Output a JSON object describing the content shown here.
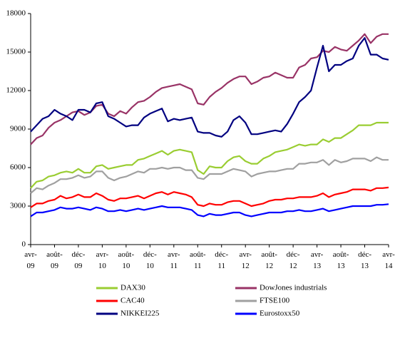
{
  "chart_data": {
    "type": "line",
    "categories": [
      "avr-09",
      null,
      null,
      null,
      "août-09",
      null,
      null,
      null,
      "déc-09",
      null,
      null,
      null,
      "avr-10",
      null,
      null,
      null,
      "août-10",
      null,
      null,
      null,
      "déc-10",
      null,
      null,
      null,
      "avr-11",
      null,
      null,
      null,
      "août-11",
      null,
      null,
      null,
      "déc-11",
      null,
      null,
      null,
      "avr-12",
      null,
      null,
      null,
      "août-12",
      null,
      null,
      null,
      "déc-12",
      null,
      null,
      null,
      "avr-13",
      null,
      null,
      null,
      "août-13",
      null,
      null,
      null,
      "déc-13",
      null,
      null,
      null,
      "avr-14"
    ],
    "ylim": [
      0,
      18000
    ],
    "yticks": [
      0,
      3000,
      6000,
      9000,
      12000,
      15000,
      18000
    ],
    "series": [
      {
        "name": "DAX30",
        "color": "#9acd32",
        "values": [
          4400,
          4900,
          5000,
          5300,
          5400,
          5600,
          5700,
          5600,
          5900,
          5600,
          5600,
          6100,
          6200,
          5900,
          6000,
          6100,
          6200,
          6200,
          6600,
          6700,
          6900,
          7100,
          7300,
          7000,
          7300,
          7400,
          7300,
          7200,
          5800,
          5500,
          6100,
          6000,
          6000,
          6500,
          6800,
          6900,
          6500,
          6300,
          6300,
          6700,
          6900,
          7200,
          7300,
          7400,
          7600,
          7800,
          7700,
          7800,
          7800,
          8200,
          8000,
          8300,
          8300,
          8600,
          8900,
          9300,
          9300,
          9300,
          9500,
          9500,
          9500
        ]
      },
      {
        "name": "DowJones industrials",
        "color": "#993366",
        "values": [
          7800,
          8300,
          8500,
          9100,
          9500,
          9700,
          10000,
          10300,
          10400,
          10100,
          10300,
          10800,
          10900,
          10200,
          10000,
          10400,
          10200,
          10700,
          11100,
          11200,
          11500,
          11900,
          12200,
          12300,
          12400,
          12500,
          12300,
          12100,
          11000,
          10900,
          11500,
          11900,
          12200,
          12600,
          12900,
          13100,
          13100,
          12500,
          12700,
          13000,
          13100,
          13400,
          13200,
          13000,
          13000,
          13800,
          14000,
          14500,
          14600,
          15100,
          15000,
          15400,
          15200,
          15100,
          15500,
          15900,
          16400,
          15700,
          16200,
          16400,
          16400
        ]
      },
      {
        "name": "CAC40",
        "color": "#ff0000",
        "values": [
          2900,
          3200,
          3200,
          3400,
          3500,
          3800,
          3600,
          3700,
          3900,
          3700,
          3700,
          4000,
          3800,
          3500,
          3400,
          3600,
          3600,
          3700,
          3800,
          3600,
          3800,
          4000,
          4100,
          3900,
          4100,
          4000,
          3900,
          3700,
          3100,
          3000,
          3200,
          3100,
          3100,
          3300,
          3400,
          3400,
          3200,
          3000,
          3100,
          3200,
          3400,
          3500,
          3500,
          3600,
          3600,
          3700,
          3700,
          3700,
          3800,
          4000,
          3700,
          3900,
          4000,
          4100,
          4300,
          4300,
          4300,
          4200,
          4400,
          4400,
          4450
        ]
      },
      {
        "name": "FTSE100",
        "color": "#a0a0a0",
        "values": [
          4000,
          4400,
          4300,
          4600,
          4800,
          5100,
          5100,
          5200,
          5400,
          5200,
          5300,
          5700,
          5700,
          5200,
          5000,
          5200,
          5300,
          5500,
          5700,
          5600,
          5900,
          5900,
          6000,
          5900,
          6000,
          6000,
          5800,
          5800,
          5200,
          5100,
          5500,
          5500,
          5500,
          5700,
          5900,
          5800,
          5700,
          5300,
          5500,
          5600,
          5700,
          5700,
          5800,
          5900,
          5900,
          6300,
          6300,
          6400,
          6400,
          6600,
          6200,
          6600,
          6400,
          6500,
          6700,
          6700,
          6700,
          6500,
          6800,
          6600,
          6600
        ]
      },
      {
        "name": "NIKKEI225",
        "color": "#000080",
        "values": [
          8800,
          9300,
          9800,
          10000,
          10500,
          10200,
          10000,
          9700,
          10500,
          10500,
          10300,
          11000,
          11100,
          10000,
          9800,
          9500,
          9200,
          9300,
          9300,
          9900,
          10200,
          10400,
          10600,
          9600,
          9800,
          9700,
          9800,
          9900,
          8800,
          8700,
          8700,
          8500,
          8400,
          8800,
          9700,
          10000,
          9500,
          8600,
          8600,
          8700,
          8800,
          8900,
          8800,
          9400,
          10200,
          11100,
          11500,
          12000,
          13800,
          15500,
          13500,
          14000,
          14000,
          14300,
          14500,
          15500,
          16100,
          14800,
          14800,
          14500,
          14400
        ]
      },
      {
        "name": "Eurostoxx50",
        "color": "#0000ff",
        "values": [
          2200,
          2500,
          2500,
          2600,
          2700,
          2900,
          2800,
          2800,
          2900,
          2800,
          2700,
          2900,
          2800,
          2600,
          2600,
          2700,
          2600,
          2700,
          2800,
          2700,
          2800,
          2900,
          3000,
          2900,
          2900,
          2900,
          2800,
          2700,
          2300,
          2200,
          2400,
          2300,
          2300,
          2400,
          2500,
          2500,
          2300,
          2200,
          2300,
          2400,
          2500,
          2500,
          2500,
          2600,
          2600,
          2700,
          2600,
          2600,
          2700,
          2800,
          2600,
          2700,
          2800,
          2900,
          3000,
          3000,
          3000,
          3000,
          3100,
          3100,
          3150
        ]
      }
    ]
  }
}
